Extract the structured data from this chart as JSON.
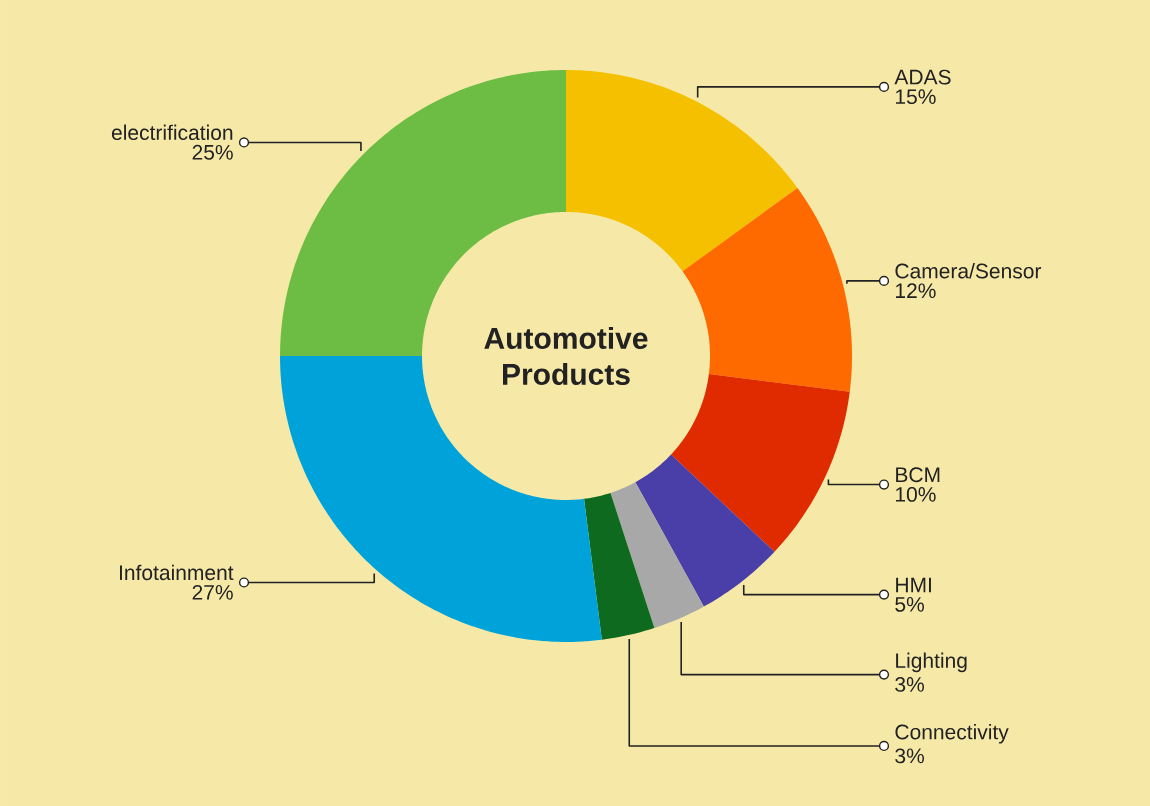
{
  "chart_data": {
    "type": "donut",
    "title": "Automotive Products",
    "categories": [
      "ADAS",
      "Camera/Sensor",
      "BCM",
      "HMI",
      "Lighting",
      "Connectivity",
      "Infotainment",
      "electrification"
    ],
    "values": [
      15,
      12,
      10,
      5,
      3,
      3,
      27,
      25
    ],
    "value_labels": [
      "15%",
      "12%",
      "10%",
      "5%",
      "3%",
      "3%",
      "27%",
      "25%"
    ],
    "colors": [
      "#f5c000",
      "#ff6a00",
      "#e02a00",
      "#4a3fa8",
      "#a8a8a8",
      "#0d6a1e",
      "#00a3d9",
      "#6dbd45"
    ]
  }
}
